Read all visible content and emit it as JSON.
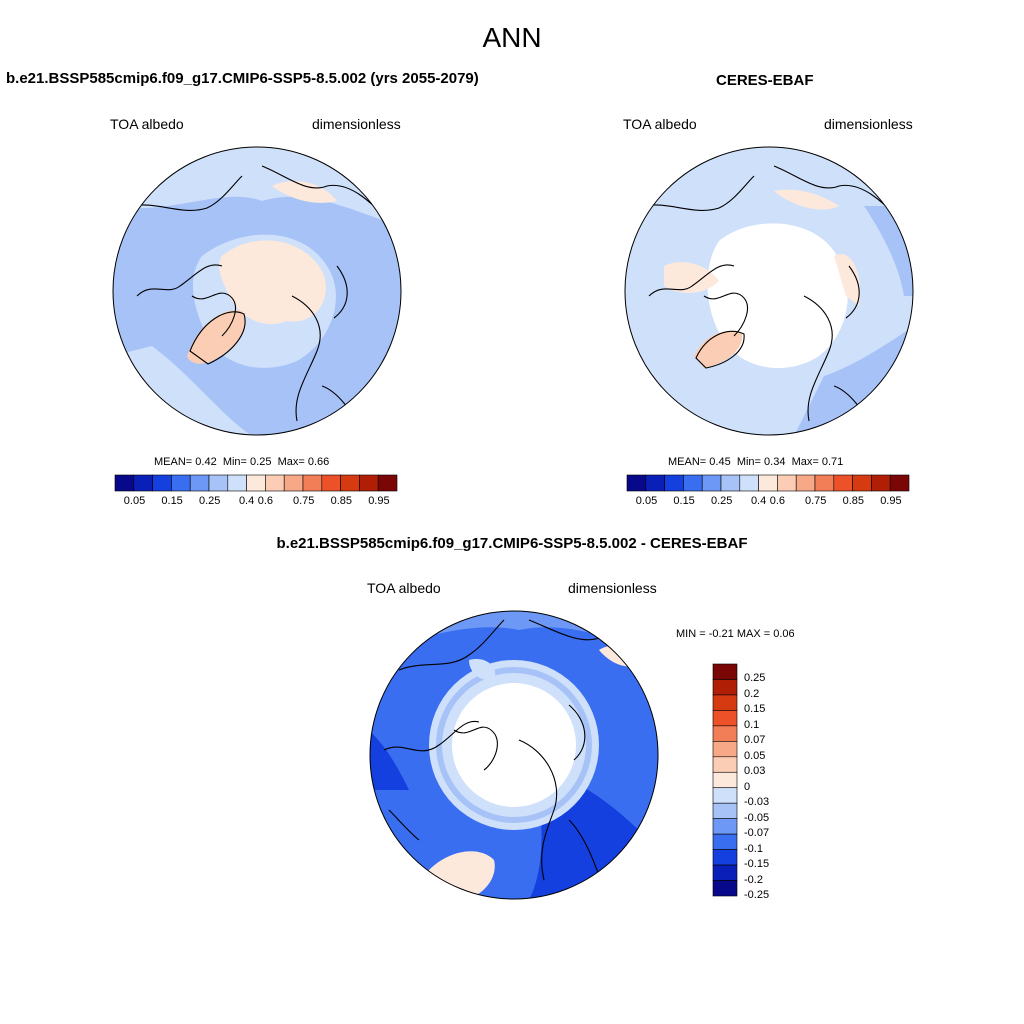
{
  "figure": {
    "title": "ANN"
  },
  "panels": [
    {
      "id": "model",
      "title": "b.e21.BSSP585cmip6.f09_g17.CMIP6-SSP5-8.5.002 (yrs 2055-2079)",
      "left_label": "TOA albedo",
      "right_label": "dimensionless",
      "stats": {
        "mean_label": "MEAN=",
        "mean": "0.42",
        "min_label": "Min=",
        "min": "0.25",
        "max_label": "Max=",
        "max": "0.66"
      }
    },
    {
      "id": "obs",
      "title": "CERES-EBAF",
      "left_label": "TOA albedo",
      "right_label": "dimensionless",
      "stats": {
        "mean_label": "MEAN=",
        "mean": "0.45",
        "min_label": "Min=",
        "min": "0.34",
        "max_label": "Max=",
        "max": "0.71"
      }
    },
    {
      "id": "diff",
      "title": "b.e21.BSSP585cmip6.f09_g17.CMIP6-SSP5-8.5.002 - CERES-EBAF",
      "left_label": "TOA albedo",
      "right_label": "dimensionless",
      "stats_text": "MIN =  -0.21 MAX =   0.06"
    }
  ],
  "colorbar_abs": {
    "labels": [
      "0.05",
      "0.15",
      "0.25",
      "0.4",
      "0.6",
      "0.75",
      "0.85",
      "0.95"
    ],
    "colors": [
      "#08088a",
      "#0a1fb8",
      "#1540e0",
      "#3a6ef0",
      "#6e98f5",
      "#a6c2f7",
      "#cfe0fa",
      "#fde8dc",
      "#fbcdb4",
      "#f7a886",
      "#f27e58",
      "#ec5127",
      "#d63a10",
      "#b01e06",
      "#7a0606"
    ]
  },
  "colorbar_diff": {
    "labels": [
      "0.25",
      "0.2",
      "0.15",
      "0.1",
      "0.07",
      "0.05",
      "0.03",
      "0",
      "-0.03",
      "-0.05",
      "-0.07",
      "-0.1",
      "-0.15",
      "-0.2",
      "-0.25"
    ],
    "colors": [
      "#7a0606",
      "#b01e06",
      "#d63a10",
      "#ec5127",
      "#f27e58",
      "#f7a886",
      "#fbcdb4",
      "#fde8dc",
      "#cfe0fa",
      "#a6c2f7",
      "#6e98f5",
      "#3a6ef0",
      "#1540e0",
      "#0a1fb8",
      "#08088a"
    ]
  }
}
